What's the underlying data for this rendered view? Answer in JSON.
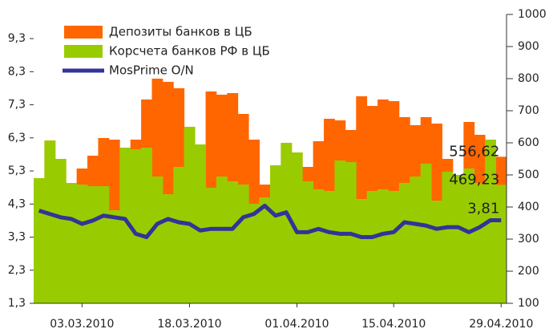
{
  "chart_data": {
    "type": "bar",
    "categories": [
      null,
      null,
      null,
      null,
      "03.03.2010",
      null,
      null,
      null,
      null,
      null,
      null,
      null,
      null,
      null,
      "18.03.2010",
      null,
      null,
      null,
      null,
      null,
      null,
      null,
      null,
      null,
      "01.04.2010",
      null,
      null,
      null,
      null,
      null,
      null,
      null,
      null,
      "15.04.2010",
      null,
      null,
      null,
      null,
      null,
      null,
      null,
      null,
      null,
      "29.04.2010"
    ],
    "series": [
      {
        "name": "Депозиты банков в ЦБ",
        "color": "#ff6600",
        "axis": "y2",
        "values": [
          490,
          607,
          550,
          475,
          520,
          560,
          615,
          610,
          585,
          610,
          735,
          800,
          790,
          770,
          650,
          595,
          760,
          750,
          755,
          690,
          610,
          470,
          530,
          600,
          570,
          525,
          605,
          675,
          670,
          640,
          745,
          715,
          735,
          730,
          680,
          655,
          680,
          660,
          550,
          500,
          665,
          625,
          610,
          556.62
        ],
        "value_labels": [
          null,
          null,
          null,
          null,
          null,
          null,
          null,
          null,
          null,
          null,
          null,
          null,
          null,
          null,
          null,
          null,
          null,
          null,
          null,
          null,
          null,
          null,
          null,
          null,
          null,
          null,
          null,
          null,
          null,
          null,
          null,
          null,
          null,
          null,
          null,
          null,
          null,
          null,
          null,
          null,
          null,
          null,
          null,
          "556,62"
        ]
      },
      {
        "name": "Корсчета банков РФ в ЦБ",
        "color": "#99cc00",
        "axis": "y2",
        "values": [
          490,
          607,
          550,
          475,
          470,
          465,
          465,
          390,
          585,
          580,
          585,
          495,
          440,
          525,
          650,
          595,
          460,
          495,
          480,
          470,
          410,
          430,
          530,
          600,
          570,
          480,
          455,
          450,
          545,
          540,
          425,
          450,
          455,
          450,
          475,
          495,
          535,
          420,
          510,
          500,
          520,
          475,
          610,
          469.23
        ],
        "value_labels": [
          null,
          null,
          null,
          null,
          null,
          null,
          null,
          null,
          null,
          null,
          null,
          null,
          null,
          null,
          null,
          null,
          null,
          null,
          null,
          null,
          null,
          null,
          null,
          null,
          null,
          null,
          null,
          null,
          null,
          null,
          null,
          null,
          null,
          null,
          null,
          null,
          null,
          null,
          null,
          null,
          null,
          null,
          null,
          "469,23"
        ]
      },
      {
        "name": "MosPrime O/N",
        "color": "#333399",
        "type": "line",
        "values": [
          4.1,
          4.0,
          3.9,
          3.85,
          3.7,
          3.8,
          3.95,
          3.9,
          3.85,
          3.4,
          3.3,
          3.7,
          3.85,
          3.75,
          3.7,
          3.5,
          3.55,
          3.55,
          3.55,
          3.9,
          4.0,
          4.25,
          3.95,
          4.05,
          3.45,
          3.45,
          3.55,
          3.45,
          3.4,
          3.4,
          3.3,
          3.3,
          3.4,
          3.45,
          3.75,
          3.7,
          3.65,
          3.55,
          3.6,
          3.6,
          3.45,
          3.6,
          3.81,
          3.81
        ],
        "value_labels": [
          null,
          null,
          null,
          null,
          null,
          null,
          null,
          null,
          null,
          null,
          null,
          null,
          null,
          null,
          null,
          null,
          null,
          null,
          null,
          null,
          null,
          null,
          null,
          null,
          null,
          null,
          null,
          null,
          null,
          null,
          null,
          null,
          null,
          null,
          null,
          null,
          null,
          null,
          null,
          null,
          null,
          null,
          null,
          "3,81"
        ]
      }
    ],
    "ylim": [
      1.3,
      10.03
    ],
    "yticks": [
      {
        "value": 1.3,
        "label": "1,3"
      },
      {
        "value": 2.3,
        "label": "2,3"
      },
      {
        "value": 3.3,
        "label": "3,3"
      },
      {
        "value": 4.3,
        "label": "4,3"
      },
      {
        "value": 5.3,
        "label": "5,3"
      },
      {
        "value": 6.3,
        "label": "6,3"
      },
      {
        "value": 7.3,
        "label": "7,3"
      },
      {
        "value": 8.3,
        "label": "8,3"
      },
      {
        "value": 9.3,
        "label": "9,3"
      }
    ],
    "y2lim": [
      100,
      1000
    ],
    "y2ticks": [
      100,
      200,
      300,
      400,
      500,
      600,
      700,
      800,
      900,
      1000
    ],
    "legend": "top-left"
  }
}
